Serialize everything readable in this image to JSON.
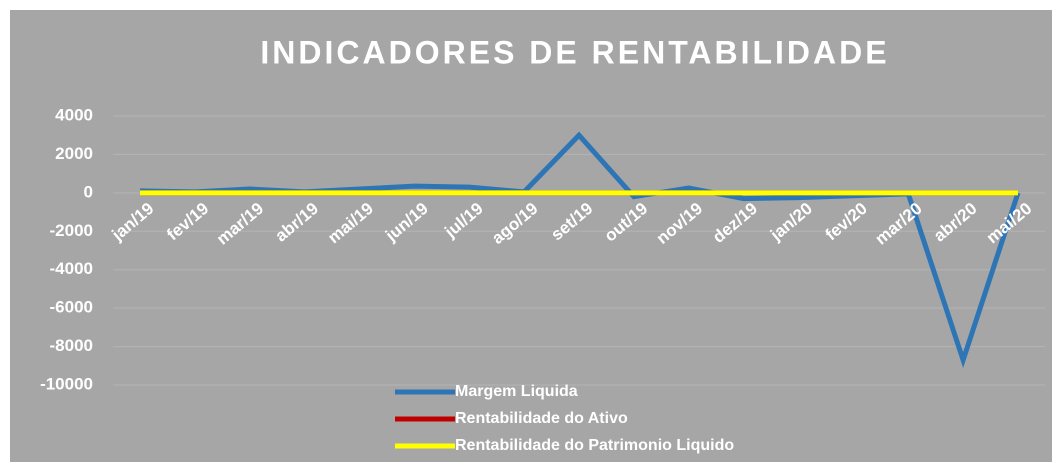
{
  "chart_data": {
    "type": "line",
    "title": "INDICADORES DE RENTABILIDADE",
    "categories": [
      "jan/19",
      "fev/19",
      "mar/19",
      "abr/19",
      "mai/19",
      "jun/19",
      "jul/19",
      "ago/19",
      "set/19",
      "out/19",
      "nov/19",
      "dez/19",
      "jan/20",
      "fev/20",
      "mar/20",
      "abr/20",
      "mai/20"
    ],
    "series": [
      {
        "name": "Margem Liquida",
        "color": "#2e75b6",
        "values": [
          100,
          50,
          200,
          50,
          200,
          350,
          300,
          50,
          3000,
          -200,
          250,
          -300,
          -250,
          -150,
          -50,
          -8700,
          0
        ]
      },
      {
        "name": "Rentabilidade do Ativo",
        "color": "#c00000",
        "values": [
          0,
          0,
          0,
          0,
          0,
          0,
          0,
          0,
          0,
          0,
          0,
          0,
          0,
          0,
          0,
          0,
          0
        ]
      },
      {
        "name": "Rentabilidade do Patrimonio Liquido",
        "color": "#ffff00",
        "values": [
          0,
          0,
          0,
          0,
          0,
          0,
          0,
          0,
          0,
          0,
          0,
          0,
          0,
          0,
          0,
          0,
          0
        ]
      }
    ],
    "ylim": [
      -10000,
      4000
    ],
    "yticks": [
      -10000,
      -8000,
      -6000,
      -4000,
      -2000,
      0,
      2000,
      4000
    ],
    "grid": true
  }
}
